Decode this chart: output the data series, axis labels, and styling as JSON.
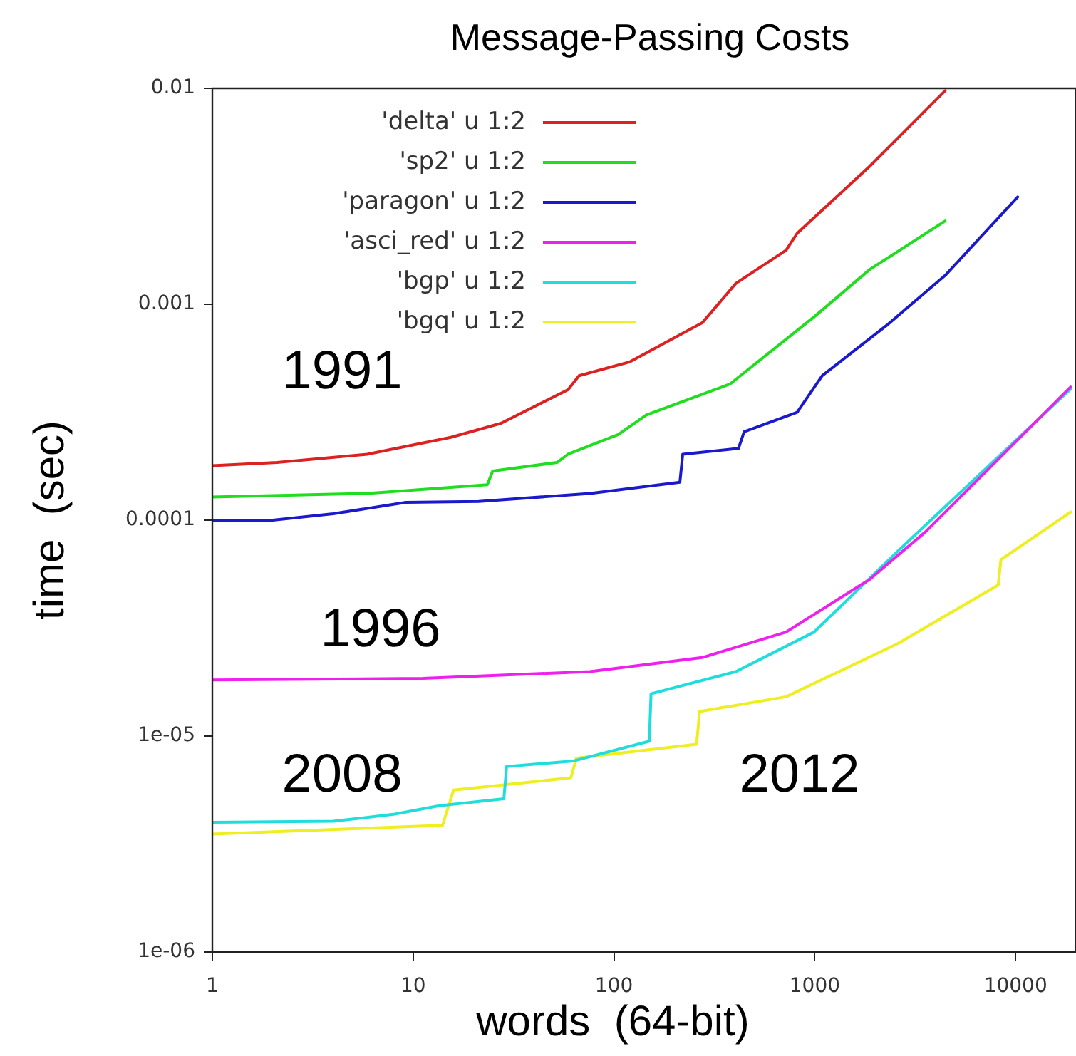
{
  "chart_data": {
    "type": "line",
    "title": "Message-Passing Costs",
    "xlabel": "words  (64-bit)",
    "ylabel": "time  (sec)",
    "log": "xy",
    "grid": false,
    "legend": "top left",
    "line_style": "solid",
    "marker": "none",
    "xlim": [
      1,
      20000
    ],
    "xticks": [
      1,
      10,
      100,
      1000,
      10000
    ],
    "ylim": [
      1e-06,
      0.01
    ],
    "yticks": [
      {
        "value": 1e-06,
        "label": "1e-06"
      },
      {
        "value": 1e-05,
        "label": "1e-05"
      },
      {
        "value": 0.0001,
        "label": "0.0001"
      },
      {
        "value": 0.001,
        "label": "0.001"
      },
      {
        "value": 0.01,
        "label": "0.01"
      }
    ],
    "series": [
      {
        "name": "'delta' u 1:2",
        "color": "#dd2020",
        "x": [
          1,
          2.1,
          5.9,
          15.4,
          27.4,
          59,
          67,
          120,
          275,
          405,
          720,
          817,
          1880,
          4460
        ],
        "values": [
          0.000179,
          0.000185,
          0.000202,
          0.000242,
          0.000281,
          0.000402,
          0.000467,
          0.000541,
          0.00082,
          0.00125,
          0.00178,
          0.00213,
          0.00436,
          0.00975
        ]
      },
      {
        "name": "'sp2' u 1:2",
        "color": "#20dd20",
        "x": [
          1,
          5.9,
          23.4,
          24.9,
          52,
          59,
          105,
          145,
          378,
          991,
          1880,
          4460
        ],
        "values": [
          0.000128,
          0.000133,
          0.000146,
          0.000169,
          0.000185,
          0.000202,
          0.000249,
          0.000307,
          0.000427,
          0.000873,
          0.00145,
          0.00243
        ]
      },
      {
        "name": "'paragon' u 1:2",
        "color": "#1a1acc",
        "x": [
          1,
          2,
          4,
          9.2,
          21.2,
          76,
          213,
          220,
          417,
          445,
          817,
          1090,
          2280,
          4460,
          10250
        ],
        "values": [
          0.0001,
          0.0001,
          0.000107,
          0.000121,
          0.000122,
          0.000133,
          0.00015,
          0.000202,
          0.000215,
          0.000257,
          0.000316,
          0.000467,
          0.000798,
          0.00136,
          0.00314
        ]
      },
      {
        "name": "'asci_red' u 1:2",
        "color": "#ee20ee",
        "x": [
          1,
          11.2,
          76,
          275,
          719,
          1880,
          3560,
          6760,
          18800
        ],
        "values": [
          1.82e-05,
          1.85e-05,
          1.99e-05,
          2.31e-05,
          3.03e-05,
          5.32e-05,
          8.83e-05,
          0.00016,
          0.000414
        ]
      },
      {
        "name": "'bgp' u 1:2",
        "color": "#20dddd",
        "x": [
          1,
          4,
          8.1,
          13.5,
          28.3,
          29.2,
          63,
          150,
          153,
          405,
          991,
          2590,
          18800
        ],
        "values": [
          3.99e-06,
          4.03e-06,
          4.35e-06,
          4.76e-06,
          5.12e-06,
          7.23e-06,
          7.67e-06,
          9.46e-06,
          1.57e-05,
          1.99e-05,
          3.03e-05,
          7.18e-05,
          0.000405
        ]
      },
      {
        "name": "'bgq' u 1:2",
        "color": "#eeee20",
        "x": [
          1,
          14,
          15.9,
          61,
          65,
          258,
          267,
          719,
          2590,
          8200,
          8450,
          18800
        ],
        "values": [
          3.52e-06,
          3.86e-06,
          5.62e-06,
          6.41e-06,
          7.9e-06,
          9.17e-06,
          1.3e-05,
          1.52e-05,
          2.68e-05,
          5.01e-05,
          6.56e-05,
          0.000109
        ]
      }
    ],
    "annotations": [
      "1991",
      "1996",
      "2008",
      "2012"
    ]
  }
}
